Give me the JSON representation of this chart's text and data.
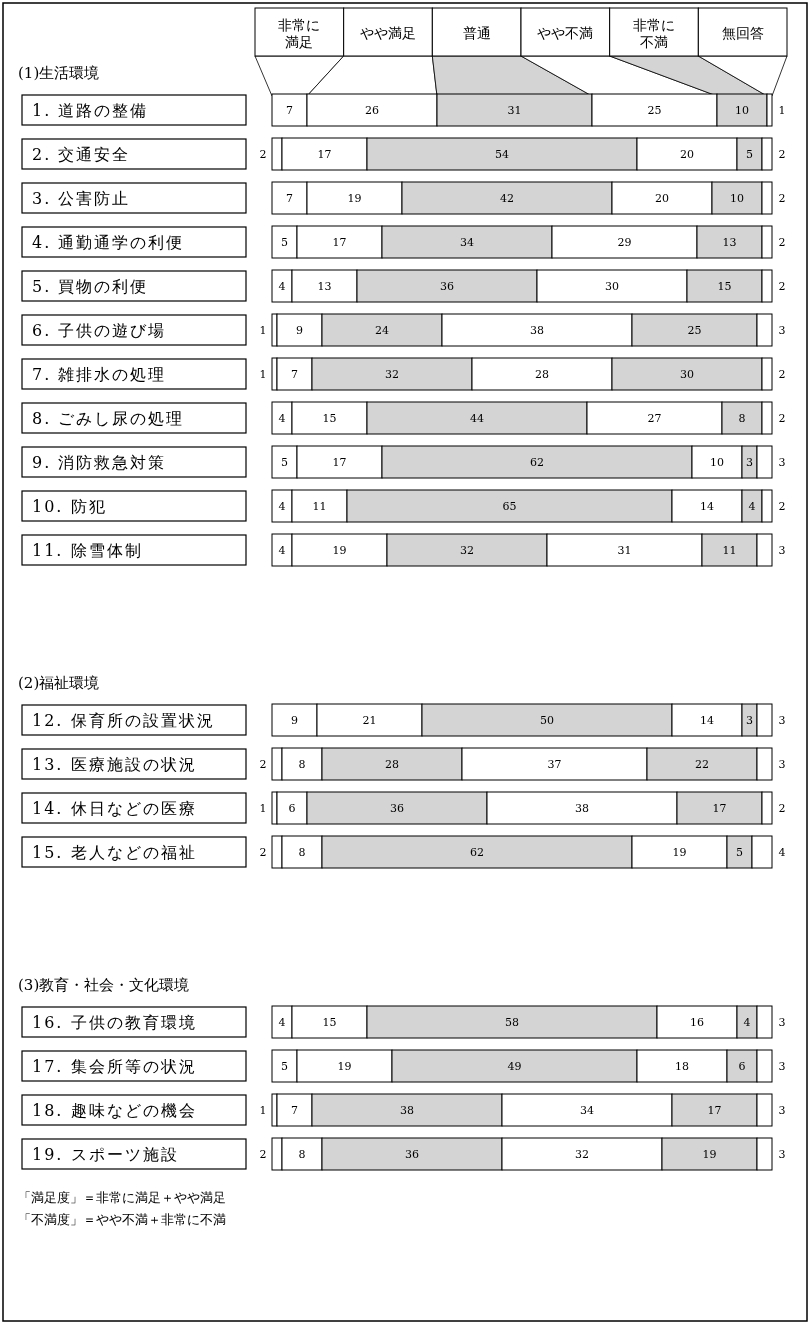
{
  "chart_data": [
    {
      "type": "bar",
      "orientation": "horizontal",
      "stacked": true,
      "data_labels": true,
      "legend": "top",
      "title": "(1)生活環境",
      "categories": [
        "1. 道路の整備",
        "2. 交通安全",
        "3. 公害防止",
        "4. 通勤通学の利便",
        "5. 買物の利便",
        "6. 子供の遊び場",
        "7. 雑排水の処理",
        "8. ごみし尿の処理",
        "9. 消防救急対策",
        "10. 防犯",
        "11. 除雪体制"
      ],
      "series": [
        {
          "name": "非常に満足",
          "color": "#ffffff",
          "values": [
            7,
            2,
            7,
            5,
            4,
            1,
            1,
            4,
            5,
            4,
            4
          ]
        },
        {
          "name": "やや満足",
          "color": "#ffffff",
          "values": [
            26,
            17,
            19,
            17,
            13,
            9,
            7,
            15,
            17,
            11,
            19
          ]
        },
        {
          "name": "普通",
          "color": "#d4d4d4",
          "values": [
            31,
            54,
            42,
            34,
            36,
            24,
            32,
            44,
            62,
            65,
            32
          ]
        },
        {
          "name": "やや不満",
          "color": "#ffffff",
          "values": [
            25,
            20,
            20,
            29,
            30,
            38,
            28,
            27,
            10,
            14,
            31
          ]
        },
        {
          "name": "非常に不満",
          "color": "#d4d4d4",
          "values": [
            10,
            5,
            10,
            13,
            15,
            25,
            30,
            8,
            3,
            4,
            11
          ]
        },
        {
          "name": "無回答",
          "color": "#ffffff",
          "values": [
            1,
            2,
            2,
            2,
            2,
            3,
            2,
            2,
            3,
            2,
            3
          ]
        }
      ]
    },
    {
      "type": "bar",
      "orientation": "horizontal",
      "stacked": true,
      "data_labels": true,
      "title": "(2)福祉環境",
      "categories": [
        "12. 保育所の設置状況",
        "13. 医療施設の状況",
        "14. 休日などの医療",
        "15. 老人などの福祉"
      ],
      "series": [
        {
          "color": "#ffffff",
          "values": [
            9,
            2,
            1,
            2
          ]
        },
        {
          "color": "#ffffff",
          "values": [
            21,
            8,
            6,
            8
          ]
        },
        {
          "color": "#d4d4d4",
          "values": [
            50,
            28,
            36,
            62
          ]
        },
        {
          "color": "#ffffff",
          "values": [
            14,
            37,
            38,
            19
          ]
        },
        {
          "color": "#d4d4d4",
          "values": [
            3,
            22,
            17,
            5
          ]
        },
        {
          "color": "#ffffff",
          "values": [
            3,
            3,
            2,
            4
          ]
        }
      ]
    },
    {
      "type": "bar",
      "orientation": "horizontal",
      "stacked": true,
      "data_labels": true,
      "title": "(3)教育・社会・文化環境",
      "categories": [
        "16. 子供の教育環境",
        "17. 集会所等の状況",
        "18. 趣味などの機会",
        "19. スポーツ施設"
      ],
      "series": [
        {
          "color": "#ffffff",
          "values": [
            4,
            5,
            1,
            2
          ]
        },
        {
          "color": "#ffffff",
          "values": [
            15,
            19,
            7,
            8
          ]
        },
        {
          "color": "#d4d4d4",
          "values": [
            58,
            49,
            38,
            36
          ]
        },
        {
          "color": "#ffffff",
          "values": [
            16,
            18,
            34,
            32
          ]
        },
        {
          "color": "#d4d4d4",
          "values": [
            4,
            6,
            17,
            19
          ]
        },
        {
          "color": "#ffffff",
          "values": [
            3,
            3,
            3,
            3
          ]
        }
      ],
      "annotations": [
        "「満足度」＝非常に満足＋やや満足",
        "「不満度」＝やや不満＋非常に不満"
      ]
    }
  ]
}
